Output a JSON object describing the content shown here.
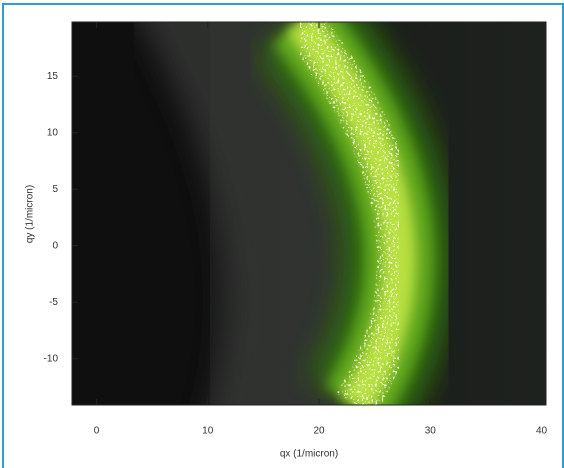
{
  "chart_data": {
    "type": "image",
    "xlabel": "qx (1/micron)",
    "ylabel": "qy (1/micron)",
    "xlim": [
      -2.2,
      40.4
    ],
    "ylim": [
      -14.1,
      19.8
    ],
    "xticks": [
      0,
      10,
      20,
      30,
      40
    ],
    "yticks": [
      -10,
      -5,
      0,
      5,
      10,
      15
    ]
  }
}
